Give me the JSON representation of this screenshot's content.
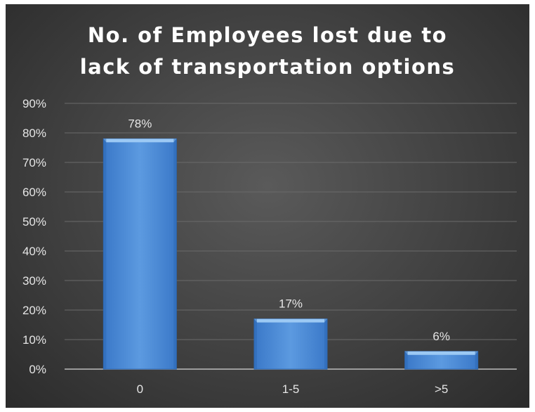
{
  "chart_data": {
    "type": "bar",
    "title_lines": [
      "No. of Employees lost due to",
      "lack of transportation options"
    ],
    "categories": [
      "0",
      "1-5",
      ">5"
    ],
    "values": [
      78,
      17,
      6
    ],
    "data_labels": [
      "78%",
      "17%",
      "6%"
    ],
    "ylim": [
      0,
      90
    ],
    "yticks": [
      0,
      10,
      20,
      30,
      40,
      50,
      60,
      70,
      80,
      90
    ],
    "ytick_format": "percent",
    "grid": true,
    "legend": "none",
    "colors": {
      "bar": "#4f8fd8",
      "bar_light": "#9cc9f4",
      "bar_dark": "#2e69b4",
      "background": "#474747",
      "text": "#e6e6e6",
      "grid": "#6a6a6a",
      "axis": "#bdbdbd"
    }
  }
}
